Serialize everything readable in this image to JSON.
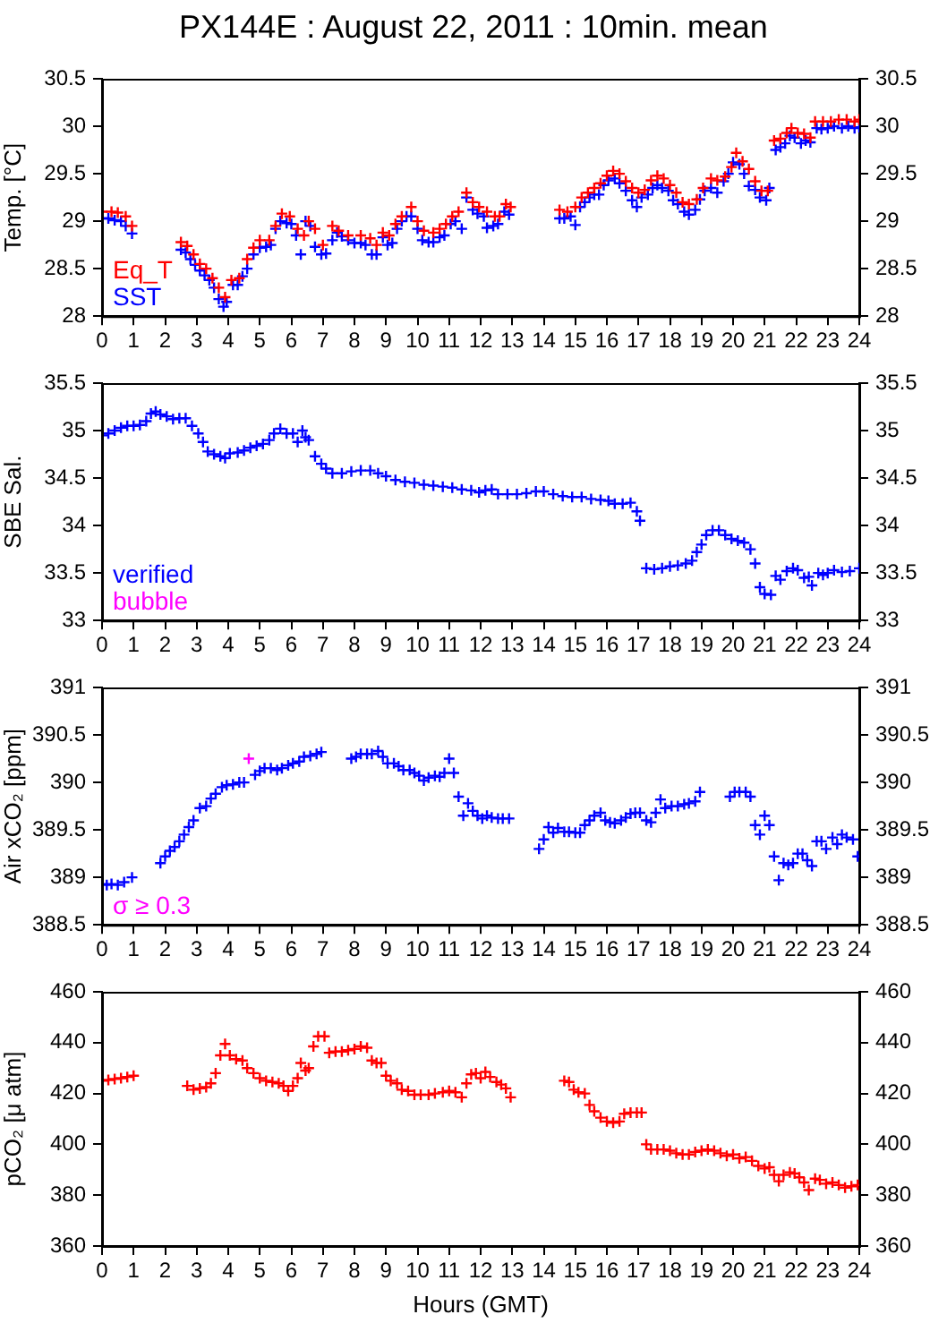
{
  "chart_data": [
    {
      "type": "scatter",
      "title": "PX144E : August 22, 2011 : 10min. mean",
      "ylabel": "Temp. [°C]",
      "xlim": [
        0,
        24
      ],
      "xticks": [
        0,
        1,
        2,
        3,
        4,
        5,
        6,
        7,
        8,
        9,
        10,
        11,
        12,
        13,
        14,
        15,
        16,
        17,
        18,
        19,
        20,
        21,
        22,
        23,
        24
      ],
      "ylim": [
        28,
        30.5
      ],
      "yticks": [
        28,
        28.5,
        29,
        29.5,
        30,
        30.5
      ],
      "y2lim": [
        28,
        30.5
      ],
      "y2ticks": [
        28,
        28.5,
        29,
        29.5,
        30,
        30.5
      ],
      "grid": false,
      "legend": "bottom left",
      "marker": "cross",
      "series": [
        {
          "name": "Eq_T",
          "color": "#ff0000",
          "x": [
            0,
            0.3,
            0.5,
            0.75,
            0.95,
            2.5,
            2.7,
            2.9,
            3.1,
            3.3,
            3.5,
            3.7,
            3.9,
            4.1,
            4.35,
            4.6,
            4.8,
            5.0,
            5.3,
            5.5,
            5.7,
            5.95,
            6.2,
            6.4,
            6.55,
            6.75,
            7.0,
            7.3,
            7.5,
            7.8,
            8.2,
            8.5,
            8.7,
            8.9,
            9.1,
            9.3,
            9.5,
            9.8,
            10.0,
            10.2,
            10.5,
            10.7,
            10.9,
            11.1,
            11.3,
            11.55,
            11.75,
            11.95,
            12.2,
            12.45,
            12.6,
            12.8,
            12.95,
            14.5,
            14.75,
            15.0,
            15.2,
            15.4,
            15.6,
            15.8,
            16.0,
            16.2,
            16.4,
            16.6,
            16.8,
            17.0,
            17.2,
            17.4,
            17.6,
            17.8,
            18.0,
            18.2,
            18.4,
            18.6,
            18.85,
            19.05,
            19.3,
            19.5,
            19.75,
            19.95,
            20.1,
            20.3,
            20.5,
            20.7,
            20.9,
            21.1,
            21.3,
            21.5,
            21.7,
            21.85,
            22.05,
            22.25,
            22.45,
            22.6,
            22.85,
            23.1,
            23.35,
            23.6,
            23.85,
            24.0
          ],
          "values": [
            29.1,
            29.1,
            29.09,
            29.05,
            28.95,
            28.78,
            28.74,
            28.65,
            28.55,
            28.5,
            28.4,
            28.3,
            28.2,
            28.38,
            28.4,
            28.6,
            28.72,
            28.8,
            28.8,
            28.95,
            29.08,
            29.05,
            28.92,
            28.85,
            29.0,
            28.92,
            28.75,
            28.95,
            28.9,
            28.85,
            28.85,
            28.82,
            28.75,
            28.88,
            28.85,
            28.97,
            29.05,
            29.15,
            29.0,
            28.9,
            28.88,
            28.92,
            28.97,
            29.05,
            29.1,
            29.3,
            29.2,
            29.15,
            29.1,
            29.05,
            29.05,
            29.18,
            29.15,
            29.12,
            29.1,
            29.15,
            29.25,
            29.3,
            29.35,
            29.4,
            29.48,
            29.53,
            29.5,
            29.42,
            29.35,
            29.3,
            29.33,
            29.43,
            29.48,
            29.45,
            29.38,
            29.3,
            29.2,
            29.18,
            29.23,
            29.35,
            29.45,
            29.43,
            29.47,
            29.57,
            29.72,
            29.63,
            29.55,
            29.42,
            29.32,
            29.32,
            29.85,
            29.87,
            29.93,
            29.98,
            29.93,
            29.92,
            29.88,
            30.05,
            30.05,
            30.05,
            30.07,
            30.07,
            30.05,
            30.07
          ]
        },
        {
          "name": "SST",
          "color": "#0000ff",
          "x": [
            0,
            0.2,
            0.4,
            0.6,
            0.75,
            0.95,
            2.5,
            2.65,
            2.8,
            2.95,
            3.1,
            3.25,
            3.4,
            3.55,
            3.7,
            3.85,
            3.95,
            4.15,
            4.3,
            4.45,
            4.6,
            4.8,
            5.0,
            5.2,
            5.35,
            5.5,
            5.65,
            5.85,
            6.0,
            6.15,
            6.3,
            6.45,
            6.6,
            6.75,
            6.95,
            7.1,
            7.3,
            7.45,
            7.6,
            7.8,
            8.0,
            8.2,
            8.35,
            8.55,
            8.7,
            8.9,
            9.05,
            9.2,
            9.35,
            9.5,
            9.65,
            9.8,
            10.0,
            10.15,
            10.35,
            10.5,
            10.7,
            10.85,
            11.05,
            11.2,
            11.4,
            11.55,
            11.75,
            11.9,
            12.1,
            12.2,
            12.4,
            12.55,
            12.75,
            12.9,
            14.5,
            14.65,
            14.85,
            15.0,
            15.15,
            15.3,
            15.45,
            15.6,
            15.75,
            15.9,
            16.05,
            16.25,
            16.4,
            16.6,
            16.8,
            16.95,
            17.1,
            17.3,
            17.45,
            17.6,
            17.75,
            17.95,
            18.1,
            18.25,
            18.45,
            18.6,
            18.8,
            18.95,
            19.1,
            19.3,
            19.5,
            19.7,
            19.85,
            20.0,
            20.2,
            20.35,
            20.5,
            20.7,
            20.85,
            21.05,
            21.15,
            21.35,
            21.5,
            21.65,
            21.8,
            21.95,
            22.15,
            22.3,
            22.45,
            22.65,
            22.8,
            23.0,
            23.2,
            23.45,
            23.65,
            23.85,
            24.0
          ],
          "values": [
            29.03,
            29.03,
            29.01,
            29.0,
            28.95,
            28.87,
            28.7,
            28.67,
            28.6,
            28.54,
            28.48,
            28.43,
            28.38,
            28.3,
            28.18,
            28.1,
            28.15,
            28.33,
            28.33,
            28.42,
            28.5,
            28.65,
            28.72,
            28.73,
            28.75,
            28.92,
            29.0,
            28.98,
            28.97,
            28.85,
            28.65,
            29.0,
            28.95,
            28.73,
            28.65,
            28.66,
            28.8,
            28.88,
            28.84,
            28.8,
            28.77,
            28.77,
            28.75,
            28.65,
            28.65,
            28.83,
            28.75,
            28.77,
            28.92,
            29.0,
            29.05,
            29.05,
            28.92,
            28.8,
            28.78,
            28.78,
            28.83,
            28.85,
            28.97,
            29.0,
            28.92,
            29.25,
            29.12,
            29.08,
            29.05,
            28.93,
            28.95,
            28.97,
            29.1,
            29.07,
            29.03,
            29.03,
            29.05,
            28.96,
            29.15,
            29.2,
            29.25,
            29.28,
            29.28,
            29.38,
            29.43,
            29.45,
            29.4,
            29.32,
            29.22,
            29.15,
            29.25,
            29.28,
            29.35,
            29.38,
            29.35,
            29.32,
            29.22,
            29.18,
            29.1,
            29.07,
            29.12,
            29.23,
            29.32,
            29.35,
            29.3,
            29.42,
            29.5,
            29.62,
            29.6,
            29.5,
            29.37,
            29.33,
            29.25,
            29.22,
            29.35,
            29.75,
            29.78,
            29.82,
            29.9,
            29.88,
            29.82,
            29.85,
            29.83,
            29.98,
            29.97,
            29.98,
            30.0,
            29.98,
            30.0,
            29.98,
            29.99
          ]
        }
      ]
    },
    {
      "type": "scatter",
      "ylabel": "SBE Sal.",
      "xlim": [
        0,
        24
      ],
      "xticks": [
        0,
        1,
        2,
        3,
        4,
        5,
        6,
        7,
        8,
        9,
        10,
        11,
        12,
        13,
        14,
        15,
        16,
        17,
        18,
        19,
        20,
        21,
        22,
        23,
        24
      ],
      "ylim": [
        33,
        35.5
      ],
      "yticks": [
        33,
        33.5,
        34,
        34.5,
        35,
        35.5
      ],
      "y2lim": [
        33,
        35.5
      ],
      "y2ticks": [
        33,
        33.5,
        34,
        34.5,
        35,
        35.5
      ],
      "grid": false,
      "legend": "bottom left",
      "marker": "cross",
      "series": [
        {
          "name": "verified",
          "color": "#0000ff",
          "x": [
            0,
            0.2,
            0.4,
            0.6,
            0.8,
            1.0,
            1.2,
            1.4,
            1.55,
            1.7,
            1.85,
            2.05,
            2.25,
            2.45,
            2.65,
            2.85,
            3.05,
            3.2,
            3.35,
            3.55,
            3.75,
            3.9,
            4.05,
            4.3,
            4.5,
            4.7,
            4.9,
            5.1,
            5.3,
            5.45,
            5.65,
            5.85,
            6.05,
            6.2,
            6.35,
            6.45,
            6.55,
            6.75,
            6.95,
            7.1,
            7.3,
            7.6,
            7.9,
            8.2,
            8.5,
            8.75,
            9.0,
            9.3,
            9.6,
            9.9,
            10.2,
            10.5,
            10.8,
            11.1,
            11.4,
            11.7,
            11.95,
            12.15,
            12.35,
            12.55,
            12.85,
            13.15,
            13.45,
            13.75,
            14.0,
            14.3,
            14.6,
            14.9,
            15.2,
            15.5,
            15.8,
            16.05,
            16.25,
            16.5,
            16.75,
            16.95,
            17.05,
            17.25,
            17.5,
            17.75,
            18.0,
            18.25,
            18.5,
            18.7,
            18.85,
            19.0,
            19.15,
            19.35,
            19.55,
            19.75,
            19.95,
            20.15,
            20.35,
            20.55,
            20.7,
            20.85,
            21.0,
            21.2,
            21.35,
            21.5,
            21.7,
            21.9,
            22.05,
            22.25,
            22.4,
            22.5,
            22.7,
            22.85,
            23.0,
            23.2,
            23.45,
            23.7,
            24.0
          ],
          "values": [
            34.95,
            34.97,
            35.0,
            35.03,
            35.05,
            35.05,
            35.06,
            35.1,
            35.18,
            35.2,
            35.17,
            35.15,
            35.12,
            35.13,
            35.13,
            35.05,
            34.97,
            34.88,
            34.78,
            34.75,
            34.73,
            34.71,
            34.76,
            34.77,
            34.79,
            34.82,
            34.84,
            34.86,
            34.9,
            34.97,
            35.02,
            34.97,
            34.97,
            34.88,
            35.0,
            34.93,
            34.9,
            34.73,
            34.65,
            34.6,
            34.55,
            34.55,
            34.57,
            34.58,
            34.58,
            34.55,
            34.52,
            34.48,
            34.46,
            34.45,
            34.43,
            34.42,
            34.41,
            34.4,
            34.38,
            34.37,
            34.35,
            34.37,
            34.38,
            34.33,
            34.33,
            34.33,
            34.34,
            34.36,
            34.36,
            34.33,
            34.31,
            34.3,
            34.3,
            34.28,
            34.27,
            34.26,
            34.23,
            34.23,
            34.24,
            34.15,
            34.05,
            33.55,
            33.54,
            33.55,
            33.57,
            33.58,
            33.6,
            33.63,
            33.72,
            33.8,
            33.9,
            33.95,
            33.95,
            33.9,
            33.86,
            33.84,
            33.82,
            33.75,
            33.6,
            33.35,
            33.28,
            33.27,
            33.47,
            33.43,
            33.52,
            33.55,
            33.53,
            33.45,
            33.46,
            33.37,
            33.5,
            33.48,
            33.5,
            33.53,
            33.51,
            33.52,
            33.55
          ]
        },
        {
          "name": "bubble",
          "color": "#ff00ff"
        }
      ]
    },
    {
      "type": "scatter",
      "ylabel": "Air xCO₂ [ppm]",
      "xlim": [
        0,
        24
      ],
      "xticks": [
        0,
        1,
        2,
        3,
        4,
        5,
        6,
        7,
        8,
        9,
        10,
        11,
        12,
        13,
        14,
        15,
        16,
        17,
        18,
        19,
        20,
        21,
        22,
        23,
        24
      ],
      "ylim": [
        388.5,
        391
      ],
      "yticks": [
        388.5,
        389,
        389.5,
        390,
        390.5,
        391
      ],
      "y2lim": [
        388.5,
        391
      ],
      "y2ticks": [
        388.5,
        389,
        389.5,
        390,
        390.5,
        391
      ],
      "grid": false,
      "legend": "bottom left",
      "marker": "cross",
      "series": [
        {
          "color": "#0000ff",
          "x": [
            0,
            0.15,
            0.3,
            0.5,
            0.7,
            0.95,
            1.85,
            2.0,
            2.15,
            2.3,
            2.45,
            2.6,
            2.75,
            2.9,
            3.1,
            3.3,
            3.45,
            3.6,
            3.8,
            3.95,
            4.15,
            4.35,
            4.5,
            4.85,
            5.0,
            5.15,
            5.35,
            5.55,
            5.7,
            5.9,
            6.05,
            6.25,
            6.4,
            6.6,
            6.8,
            6.95,
            7.9,
            8.05,
            8.2,
            8.4,
            8.55,
            8.75,
            8.9,
            9.05,
            9.25,
            9.4,
            9.55,
            9.75,
            9.9,
            10.05,
            10.2,
            10.35,
            10.55,
            10.7,
            10.85,
            11.0,
            11.15,
            11.3,
            11.45,
            11.6,
            11.75,
            11.9,
            12.05,
            12.2,
            12.35,
            12.55,
            12.7,
            12.9,
            13.85,
            14.0,
            14.15,
            14.3,
            14.45,
            14.65,
            14.8,
            15.0,
            15.15,
            15.3,
            15.45,
            15.6,
            15.8,
            15.95,
            16.1,
            16.25,
            16.45,
            16.6,
            16.75,
            16.9,
            17.05,
            17.25,
            17.4,
            17.55,
            17.7,
            17.85,
            18.05,
            18.25,
            18.45,
            18.6,
            18.8,
            18.95,
            19.9,
            20.05,
            20.2,
            20.4,
            20.55,
            20.7,
            20.85,
            21.0,
            21.15,
            21.3,
            21.45,
            21.6,
            21.75,
            21.9,
            22.05,
            22.2,
            22.35,
            22.5,
            22.65,
            22.8,
            22.95,
            23.15,
            23.3,
            23.45,
            23.6,
            23.8,
            23.95
          ],
          "values": [
            388.93,
            388.92,
            388.93,
            388.92,
            388.95,
            389.0,
            389.15,
            389.22,
            389.28,
            389.32,
            389.38,
            389.45,
            389.53,
            389.6,
            389.73,
            389.75,
            389.83,
            389.88,
            389.95,
            389.97,
            389.98,
            390.0,
            390.0,
            390.08,
            390.12,
            390.15,
            390.15,
            390.13,
            390.15,
            390.18,
            390.2,
            390.22,
            390.27,
            390.28,
            390.3,
            390.32,
            390.25,
            390.27,
            390.3,
            390.3,
            390.3,
            390.33,
            390.27,
            390.2,
            390.2,
            390.17,
            390.13,
            390.13,
            390.1,
            390.07,
            390.02,
            390.05,
            390.07,
            390.06,
            390.1,
            390.25,
            390.1,
            389.85,
            389.65,
            389.78,
            389.7,
            389.65,
            389.62,
            389.65,
            389.63,
            389.62,
            389.62,
            389.62,
            389.3,
            389.4,
            389.53,
            389.47,
            389.52,
            389.48,
            389.48,
            389.47,
            389.47,
            389.55,
            389.6,
            389.65,
            389.68,
            389.6,
            389.58,
            389.57,
            389.6,
            389.63,
            389.67,
            389.68,
            389.68,
            389.6,
            389.58,
            389.68,
            389.82,
            389.73,
            389.75,
            389.75,
            389.77,
            389.78,
            389.8,
            389.9,
            389.85,
            389.9,
            389.9,
            389.9,
            389.85,
            389.55,
            389.45,
            389.65,
            389.55,
            389.22,
            388.97,
            389.15,
            389.13,
            389.15,
            389.25,
            389.25,
            389.18,
            389.12,
            389.38,
            389.38,
            389.3,
            389.42,
            389.35,
            389.45,
            389.42,
            389.4,
            389.22
          ]
        },
        {
          "name": "σ ≥ 0.3",
          "color": "#ff00ff",
          "x": [
            4.65
          ],
          "values": [
            390.25
          ]
        }
      ]
    },
    {
      "type": "scatter",
      "ylabel": "pCO₂ [μ atm]",
      "xlabel": "Hours (GMT)",
      "xlim": [
        0,
        24
      ],
      "xticks": [
        0,
        1,
        2,
        3,
        4,
        5,
        6,
        7,
        8,
        9,
        10,
        11,
        12,
        13,
        14,
        15,
        16,
        17,
        18,
        19,
        20,
        21,
        22,
        23,
        24
      ],
      "ylim": [
        360,
        460
      ],
      "yticks": [
        360,
        380,
        400,
        420,
        440,
        460
      ],
      "y2lim": [
        360,
        460
      ],
      "y2ticks": [
        360,
        380,
        400,
        420,
        440,
        460
      ],
      "grid": false,
      "marker": "cross",
      "series": [
        {
          "color": "#ff0000",
          "x": [
            0,
            0.2,
            0.4,
            0.6,
            0.8,
            1.0,
            2.7,
            2.9,
            3.1,
            3.3,
            3.45,
            3.6,
            3.75,
            3.9,
            4.05,
            4.25,
            4.45,
            4.6,
            4.8,
            5.0,
            5.2,
            5.4,
            5.6,
            5.75,
            5.9,
            6.05,
            6.2,
            6.3,
            6.45,
            6.55,
            6.7,
            6.85,
            7.05,
            7.2,
            7.4,
            7.6,
            7.8,
            8.0,
            8.2,
            8.4,
            8.55,
            8.7,
            8.85,
            9.0,
            9.15,
            9.35,
            9.5,
            9.7,
            9.9,
            10.1,
            10.35,
            10.55,
            10.8,
            11.0,
            11.2,
            11.4,
            11.55,
            11.7,
            11.85,
            12.0,
            12.15,
            12.3,
            12.5,
            12.65,
            12.8,
            12.95,
            14.65,
            14.8,
            14.95,
            15.1,
            15.3,
            15.45,
            15.6,
            15.8,
            16.0,
            16.2,
            16.4,
            16.55,
            16.75,
            16.95,
            17.1,
            17.25,
            17.4,
            17.6,
            17.8,
            18.0,
            18.2,
            18.4,
            18.6,
            18.8,
            19.0,
            19.2,
            19.4,
            19.6,
            19.8,
            20.0,
            20.2,
            20.4,
            20.6,
            20.8,
            21.0,
            21.15,
            21.3,
            21.45,
            21.6,
            21.8,
            21.95,
            22.1,
            22.25,
            22.4,
            22.6,
            22.75,
            22.95,
            23.15,
            23.35,
            23.55,
            23.75,
            23.95
          ],
          "values": [
            425,
            425.3,
            425.7,
            426,
            426.5,
            427,
            423,
            421.5,
            422,
            422.5,
            424,
            428,
            435,
            439.5,
            435,
            433.5,
            433,
            430,
            428,
            426,
            425,
            424.5,
            424,
            423,
            421,
            423,
            426,
            432,
            429,
            430,
            438.5,
            442.5,
            442.5,
            436,
            436.5,
            436.5,
            437,
            437.5,
            438.5,
            438,
            433,
            432,
            432,
            427,
            425,
            424,
            421.5,
            421,
            419.5,
            419.5,
            419.5,
            420,
            420.5,
            421,
            420.5,
            418.5,
            424,
            427.5,
            428,
            426,
            428.5,
            426.5,
            424.5,
            423.5,
            422,
            418.5,
            425,
            424.5,
            421.5,
            420.5,
            420,
            415.5,
            413,
            410.5,
            409,
            408.5,
            409,
            412,
            412.5,
            412.5,
            412.5,
            400,
            398,
            398,
            398,
            397.5,
            396.5,
            396,
            396,
            397,
            397.5,
            398,
            397.5,
            396.5,
            395.5,
            396,
            394.5,
            395,
            393.5,
            391.5,
            390.5,
            391,
            388,
            385.5,
            388,
            389,
            388.5,
            387,
            385,
            382,
            386.5,
            386,
            384.5,
            385,
            384,
            383,
            383.5,
            384
          ]
        }
      ]
    }
  ]
}
